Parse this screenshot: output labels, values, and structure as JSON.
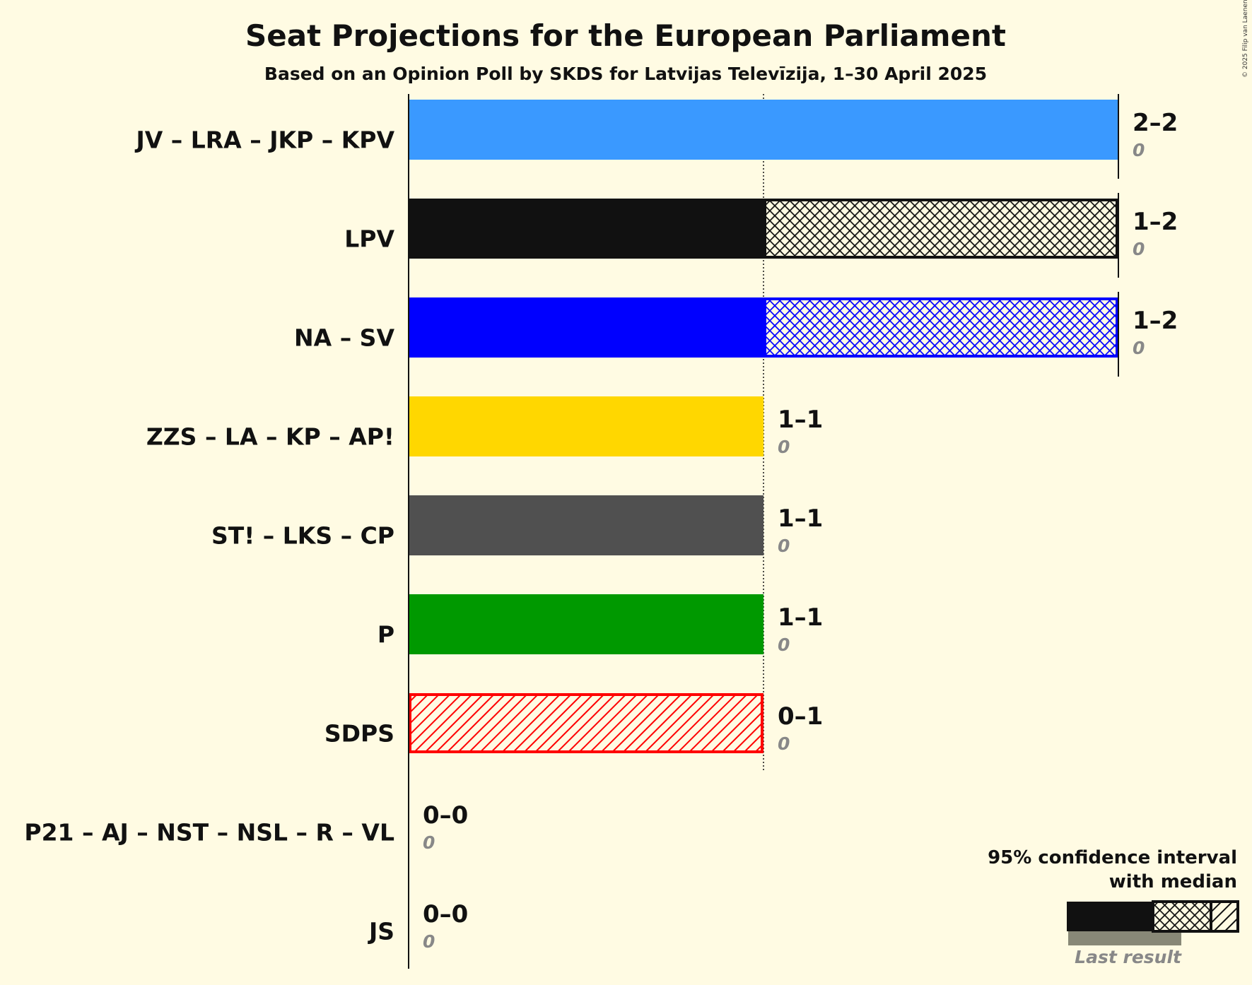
{
  "chart_data": {
    "type": "bar",
    "title": "Seat Projections for the European Parliament",
    "subtitle": "Based on an Opinion Poll by SKDS for Latvijas Televīzija, 1–30 April 2025",
    "copyright": "© 2025 Filip van Laenen",
    "xlim": [
      0,
      2
    ],
    "gridlines": [
      1
    ],
    "series": [
      {
        "name": "JV – LRA – JKP – KPV",
        "low": 2,
        "median": 2,
        "high": 2,
        "range_label": "2–2",
        "last_result": 0,
        "last_label": "0",
        "color": "#3a99ff"
      },
      {
        "name": "LPV",
        "low": 1,
        "median": 1,
        "high": 2,
        "range_label": "1–2",
        "last_result": 0,
        "last_label": "0",
        "color": "#111111"
      },
      {
        "name": "NA – SV",
        "low": 1,
        "median": 1,
        "high": 2,
        "range_label": "1–2",
        "last_result": 0,
        "last_label": "0",
        "color": "#0000ff"
      },
      {
        "name": "ZZS – LA – KP – AP!",
        "low": 1,
        "median": 1,
        "high": 1,
        "range_label": "1–1",
        "last_result": 0,
        "last_label": "0",
        "color": "#ffd700"
      },
      {
        "name": "ST! – LKS – CP",
        "low": 1,
        "median": 1,
        "high": 1,
        "range_label": "1–1",
        "last_result": 0,
        "last_label": "0",
        "color": "#505050"
      },
      {
        "name": "P",
        "low": 1,
        "median": 1,
        "high": 1,
        "range_label": "1–1",
        "last_result": 0,
        "last_label": "0",
        "color": "#009900"
      },
      {
        "name": "SDPS",
        "low": 0,
        "median": 0,
        "high": 1,
        "range_label": "0–1",
        "last_result": 0,
        "last_label": "0",
        "color": "#ff0000"
      },
      {
        "name": "P21 – AJ – NST – NSL – R – VL",
        "low": 0,
        "median": 0,
        "high": 0,
        "range_label": "0–0",
        "last_result": 0,
        "last_label": "0",
        "color": "#888888"
      },
      {
        "name": "JS",
        "low": 0,
        "median": 0,
        "high": 0,
        "range_label": "0–0",
        "last_result": 0,
        "last_label": "0",
        "color": "#888888"
      }
    ],
    "legend": {
      "line1": "95% confidence interval",
      "line2": "with median",
      "last_result": "Last result"
    }
  }
}
